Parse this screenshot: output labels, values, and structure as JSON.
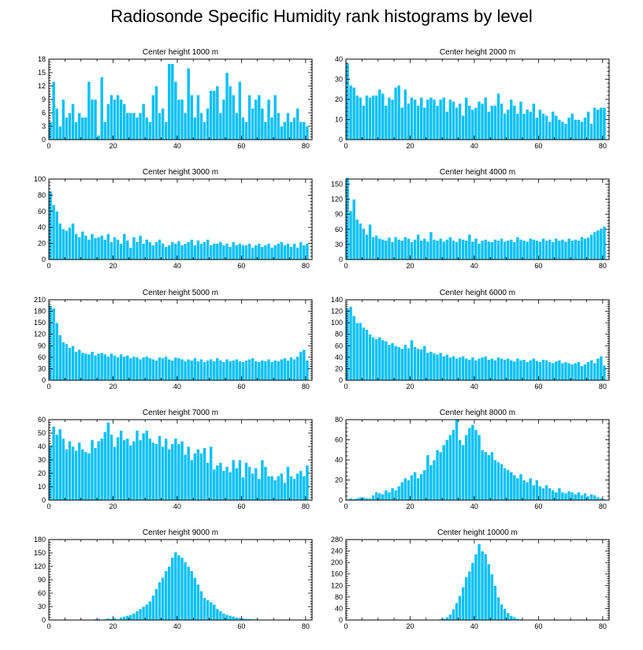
{
  "title": "Radiosonde Specific Humidity rank histograms by level",
  "colors": {
    "bar": "#0ac0f5",
    "bar_edge": "#ffffff",
    "axis": "#000000"
  },
  "chart_data": [
    {
      "type": "bar",
      "title": "Center height 1000 m",
      "xlim": [
        0,
        82
      ],
      "ylim": [
        0,
        18
      ],
      "xticks": [
        0,
        20,
        40,
        60,
        80
      ],
      "yticks": [
        0,
        3,
        6,
        9,
        12,
        15,
        18
      ],
      "values": [
        4,
        13,
        7,
        3,
        9,
        5,
        6,
        8,
        4,
        6,
        5,
        5,
        13,
        9,
        9,
        1,
        14,
        4,
        8,
        10,
        9,
        10,
        9,
        8,
        6,
        6,
        6,
        5,
        6,
        8,
        5,
        4,
        10,
        12,
        6,
        7,
        4,
        17,
        17,
        13,
        9,
        9,
        6,
        16,
        10,
        5,
        10,
        6,
        4,
        7,
        11,
        11,
        12,
        6,
        9,
        15,
        12,
        10,
        6,
        13,
        5,
        4,
        10,
        7,
        9,
        10,
        7,
        4,
        9,
        5,
        10,
        6,
        3,
        4,
        6,
        4,
        5,
        7,
        4,
        4,
        3
      ],
      "xlabel": "",
      "ylabel": ""
    },
    {
      "type": "bar",
      "title": "Center height 2000 m",
      "xlim": [
        0,
        82
      ],
      "ylim": [
        0,
        40
      ],
      "xticks": [
        0,
        20,
        40,
        60,
        80
      ],
      "yticks": [
        0,
        10,
        20,
        30,
        40
      ],
      "values": [
        38,
        27,
        26,
        22,
        21,
        17,
        22,
        21,
        22,
        22,
        25,
        23,
        17,
        21,
        20,
        26,
        27,
        16,
        25,
        18,
        21,
        20,
        17,
        21,
        16,
        20,
        21,
        20,
        17,
        20,
        21,
        14,
        20,
        19,
        16,
        18,
        12,
        21,
        17,
        15,
        16,
        19,
        18,
        21,
        14,
        17,
        17,
        23,
        18,
        13,
        15,
        20,
        17,
        13,
        19,
        13,
        15,
        14,
        18,
        11,
        15,
        13,
        12,
        9,
        14,
        12,
        10,
        9,
        8,
        11,
        13,
        10,
        10,
        9,
        11,
        14,
        8,
        16,
        15,
        16,
        16
      ],
      "xlabel": "",
      "ylabel": ""
    },
    {
      "type": "bar",
      "title": "Center height 3000 m",
      "xlim": [
        0,
        82
      ],
      "ylim": [
        0,
        100
      ],
      "xticks": [
        0,
        20,
        40,
        60,
        80
      ],
      "yticks": [
        0,
        20,
        40,
        60,
        80,
        100
      ],
      "values": [
        85,
        68,
        60,
        45,
        38,
        36,
        40,
        45,
        32,
        28,
        35,
        30,
        25,
        32,
        27,
        28,
        30,
        25,
        32,
        22,
        28,
        25,
        20,
        32,
        24,
        15,
        28,
        22,
        30,
        20,
        25,
        22,
        18,
        22,
        25,
        20,
        16,
        18,
        22,
        20,
        23,
        18,
        20,
        22,
        25,
        18,
        24,
        20,
        22,
        25,
        18,
        20,
        20,
        22,
        18,
        20,
        16,
        22,
        18,
        20,
        18,
        18,
        20,
        15,
        18,
        20,
        16,
        18,
        20,
        15,
        18,
        20,
        22,
        18,
        20,
        16,
        20,
        15,
        22,
        18,
        20
      ],
      "xlabel": "",
      "ylabel": ""
    },
    {
      "type": "bar",
      "title": "Center height 4000 m",
      "xlim": [
        0,
        82
      ],
      "ylim": [
        0,
        160
      ],
      "xticks": [
        0,
        20,
        40,
        60,
        80
      ],
      "yticks": [
        0,
        30,
        60,
        90,
        120,
        150
      ],
      "values": [
        163,
        97,
        120,
        80,
        72,
        62,
        50,
        70,
        45,
        48,
        42,
        40,
        38,
        44,
        35,
        45,
        40,
        38,
        45,
        42,
        35,
        40,
        50,
        38,
        42,
        36,
        55,
        40,
        38,
        42,
        36,
        40,
        45,
        38,
        35,
        42,
        40,
        38,
        50,
        36,
        42,
        32,
        38,
        40,
        36,
        35,
        40,
        38,
        42,
        36,
        38,
        40,
        35,
        45,
        40,
        38,
        36,
        42,
        40,
        38,
        36,
        42,
        38,
        40,
        35,
        42,
        38,
        40,
        36,
        42,
        38,
        40,
        38,
        45,
        42,
        44,
        50,
        55,
        58,
        62,
        66
      ],
      "xlabel": "",
      "ylabel": ""
    },
    {
      "type": "bar",
      "title": "Center height 5000 m",
      "xlim": [
        0,
        82
      ],
      "ylim": [
        0,
        210
      ],
      "xticks": [
        0,
        20,
        40,
        60,
        80
      ],
      "yticks": [
        0,
        30,
        60,
        90,
        120,
        150,
        180,
        210
      ],
      "values": [
        195,
        188,
        150,
        118,
        100,
        95,
        85,
        90,
        75,
        80,
        72,
        70,
        68,
        75,
        65,
        70,
        72,
        68,
        62,
        70,
        65,
        60,
        68,
        62,
        65,
        58,
        62,
        60,
        55,
        60,
        62,
        58,
        55,
        52,
        60,
        58,
        62,
        55,
        52,
        60,
        58,
        55,
        50,
        55,
        52,
        58,
        50,
        55,
        48,
        52,
        55,
        50,
        58,
        52,
        48,
        55,
        50,
        52,
        55,
        50,
        48,
        52,
        55,
        58,
        50,
        48,
        52,
        50,
        55,
        48,
        52,
        50,
        55,
        58,
        52,
        60,
        55,
        62,
        75,
        80,
        52
      ],
      "xlabel": "",
      "ylabel": ""
    },
    {
      "type": "bar",
      "title": "Center height 6000 m",
      "xlim": [
        0,
        82
      ],
      "ylim": [
        0,
        140
      ],
      "xticks": [
        0,
        20,
        40,
        60,
        80
      ],
      "yticks": [
        0,
        20,
        40,
        60,
        80,
        100,
        120,
        140
      ],
      "values": [
        125,
        128,
        112,
        100,
        100,
        92,
        88,
        80,
        75,
        72,
        75,
        70,
        68,
        62,
        65,
        60,
        58,
        55,
        62,
        56,
        70,
        58,
        55,
        54,
        60,
        48,
        50,
        47,
        45,
        48,
        42,
        45,
        40,
        42,
        38,
        40,
        42,
        38,
        36,
        40,
        35,
        38,
        40,
        42,
        36,
        38,
        35,
        40,
        38,
        36,
        38,
        35,
        33,
        38,
        35,
        36,
        32,
        35,
        38,
        34,
        32,
        36,
        35,
        32,
        30,
        33,
        35,
        30,
        32,
        30,
        28,
        30,
        32,
        25,
        28,
        32,
        35,
        30,
        38,
        42,
        26
      ],
      "xlabel": "",
      "ylabel": ""
    },
    {
      "type": "bar",
      "title": "Center height 7000 m",
      "xlim": [
        0,
        82
      ],
      "ylim": [
        0,
        60
      ],
      "xticks": [
        0,
        20,
        40,
        60,
        80
      ],
      "yticks": [
        0,
        10,
        20,
        30,
        40,
        50,
        60
      ],
      "values": [
        41,
        55,
        49,
        53,
        46,
        38,
        44,
        40,
        37,
        43,
        38,
        36,
        35,
        45,
        39,
        44,
        46,
        51,
        58,
        49,
        40,
        47,
        52,
        45,
        46,
        41,
        44,
        52,
        45,
        50,
        52,
        46,
        43,
        42,
        48,
        40,
        46,
        38,
        42,
        46,
        42,
        44,
        34,
        40,
        30,
        35,
        38,
        35,
        39,
        28,
        40,
        23,
        26,
        28,
        22,
        25,
        21,
        30,
        24,
        30,
        17,
        28,
        25,
        20,
        24,
        16,
        30,
        25,
        18,
        18,
        15,
        18,
        20,
        13,
        25,
        18,
        16,
        20,
        22,
        18,
        26
      ],
      "xlabel": "",
      "ylabel": ""
    },
    {
      "type": "bar",
      "title": "Center height 8000 m",
      "xlim": [
        0,
        82
      ],
      "ylim": [
        0,
        80
      ],
      "xticks": [
        0,
        20,
        40,
        60,
        80
      ],
      "yticks": [
        0,
        20,
        40,
        60,
        80
      ],
      "values": [
        1,
        2,
        1,
        2,
        3,
        3,
        2,
        2,
        5,
        8,
        7,
        6,
        10,
        8,
        12,
        10,
        14,
        18,
        22,
        20,
        25,
        28,
        22,
        26,
        30,
        45,
        35,
        40,
        50,
        48,
        55,
        60,
        65,
        70,
        80,
        60,
        55,
        65,
        72,
        75,
        70,
        65,
        50,
        48,
        45,
        48,
        40,
        38,
        36,
        32,
        30,
        28,
        25,
        22,
        26,
        20,
        18,
        22,
        15,
        20,
        14,
        12,
        15,
        12,
        10,
        8,
        12,
        8,
        7,
        9,
        8,
        6,
        8,
        5,
        7,
        4,
        6,
        5,
        3,
        2,
        1
      ],
      "xlabel": "",
      "ylabel": ""
    },
    {
      "type": "bar",
      "title": "Center height 9000 m",
      "xlim": [
        0,
        82
      ],
      "ylim": [
        0,
        180
      ],
      "xticks": [
        0,
        20,
        40,
        60,
        80
      ],
      "yticks": [
        0,
        30,
        60,
        90,
        120,
        150,
        180
      ],
      "values": [
        0,
        0,
        0,
        0,
        0,
        0,
        0,
        0,
        0,
        0,
        0,
        0,
        0,
        0,
        2,
        3,
        1,
        2,
        4,
        3,
        5,
        2,
        6,
        8,
        10,
        12,
        15,
        20,
        25,
        30,
        35,
        42,
        55,
        70,
        85,
        95,
        110,
        120,
        140,
        152,
        145,
        140,
        130,
        120,
        110,
        95,
        80,
        65,
        50,
        45,
        40,
        35,
        25,
        20,
        15,
        12,
        10,
        8,
        6,
        5,
        4,
        3,
        3,
        2,
        2,
        1,
        1,
        0,
        0,
        0,
        0,
        0,
        0,
        0,
        0,
        0,
        0,
        0,
        0,
        0,
        0
      ],
      "xlabel": "",
      "ylabel": ""
    },
    {
      "type": "bar",
      "title": "Center height 10000 m",
      "xlim": [
        0,
        82
      ],
      "ylim": [
        0,
        280
      ],
      "xticks": [
        0,
        20,
        40,
        60,
        80
      ],
      "yticks": [
        0,
        40,
        80,
        120,
        160,
        200,
        240,
        280
      ],
      "values": [
        0,
        0,
        0,
        0,
        0,
        0,
        0,
        0,
        0,
        0,
        0,
        0,
        0,
        0,
        0,
        0,
        0,
        0,
        0,
        0,
        0,
        0,
        0,
        0,
        0,
        0,
        0,
        1,
        2,
        3,
        5,
        10,
        20,
        38,
        60,
        85,
        115,
        150,
        170,
        200,
        230,
        265,
        240,
        230,
        195,
        160,
        120,
        80,
        55,
        40,
        25,
        15,
        10,
        5,
        3,
        2,
        1,
        1,
        1,
        0,
        1,
        0,
        0,
        0,
        0,
        0,
        0,
        0,
        0,
        0,
        0,
        0,
        0,
        0,
        0,
        0,
        0,
        0,
        0,
        0,
        0
      ],
      "xlabel": "",
      "ylabel": ""
    }
  ]
}
